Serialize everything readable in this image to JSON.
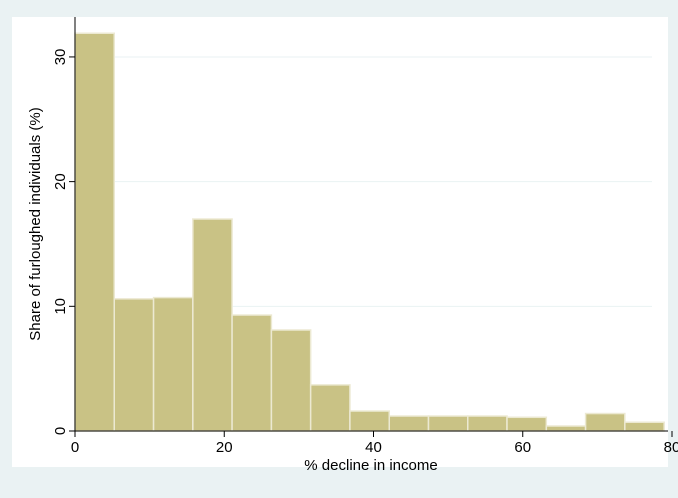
{
  "chart_data": {
    "type": "bar",
    "subtype": "histogram",
    "xlabel": "% decline in income",
    "ylabel": "Share of furloughed individuals (%)",
    "xlim": [
      0,
      80
    ],
    "ylim": [
      0,
      32
    ],
    "xticks": [
      0,
      20,
      40,
      60,
      80
    ],
    "yticks": [
      0,
      10,
      20,
      30
    ],
    "grid": true,
    "bins": [
      {
        "from": 0,
        "to": 5.26,
        "value": 31.9
      },
      {
        "from": 5.26,
        "to": 10.53,
        "value": 10.6
      },
      {
        "from": 10.53,
        "to": 15.79,
        "value": 10.7
      },
      {
        "from": 15.79,
        "to": 21.05,
        "value": 17.0
      },
      {
        "from": 21.05,
        "to": 26.32,
        "value": 9.3
      },
      {
        "from": 26.32,
        "to": 31.58,
        "value": 8.1
      },
      {
        "from": 31.58,
        "to": 36.84,
        "value": 3.7
      },
      {
        "from": 36.84,
        "to": 42.11,
        "value": 1.6
      },
      {
        "from": 42.11,
        "to": 47.37,
        "value": 1.2
      },
      {
        "from": 47.37,
        "to": 52.63,
        "value": 1.2
      },
      {
        "from": 52.63,
        "to": 57.89,
        "value": 1.2
      },
      {
        "from": 57.89,
        "to": 63.16,
        "value": 1.1
      },
      {
        "from": 63.16,
        "to": 68.42,
        "value": 0.4
      },
      {
        "from": 68.42,
        "to": 73.68,
        "value": 1.4
      },
      {
        "from": 73.68,
        "to": 78.95,
        "value": 0.7
      }
    ],
    "colors": {
      "background": "#eaf2f3",
      "plot_area": "#ffffff",
      "bar_fill": "#c9c285",
      "bar_edge": "#ece9d2",
      "grid": "#eaf2f3"
    }
  }
}
